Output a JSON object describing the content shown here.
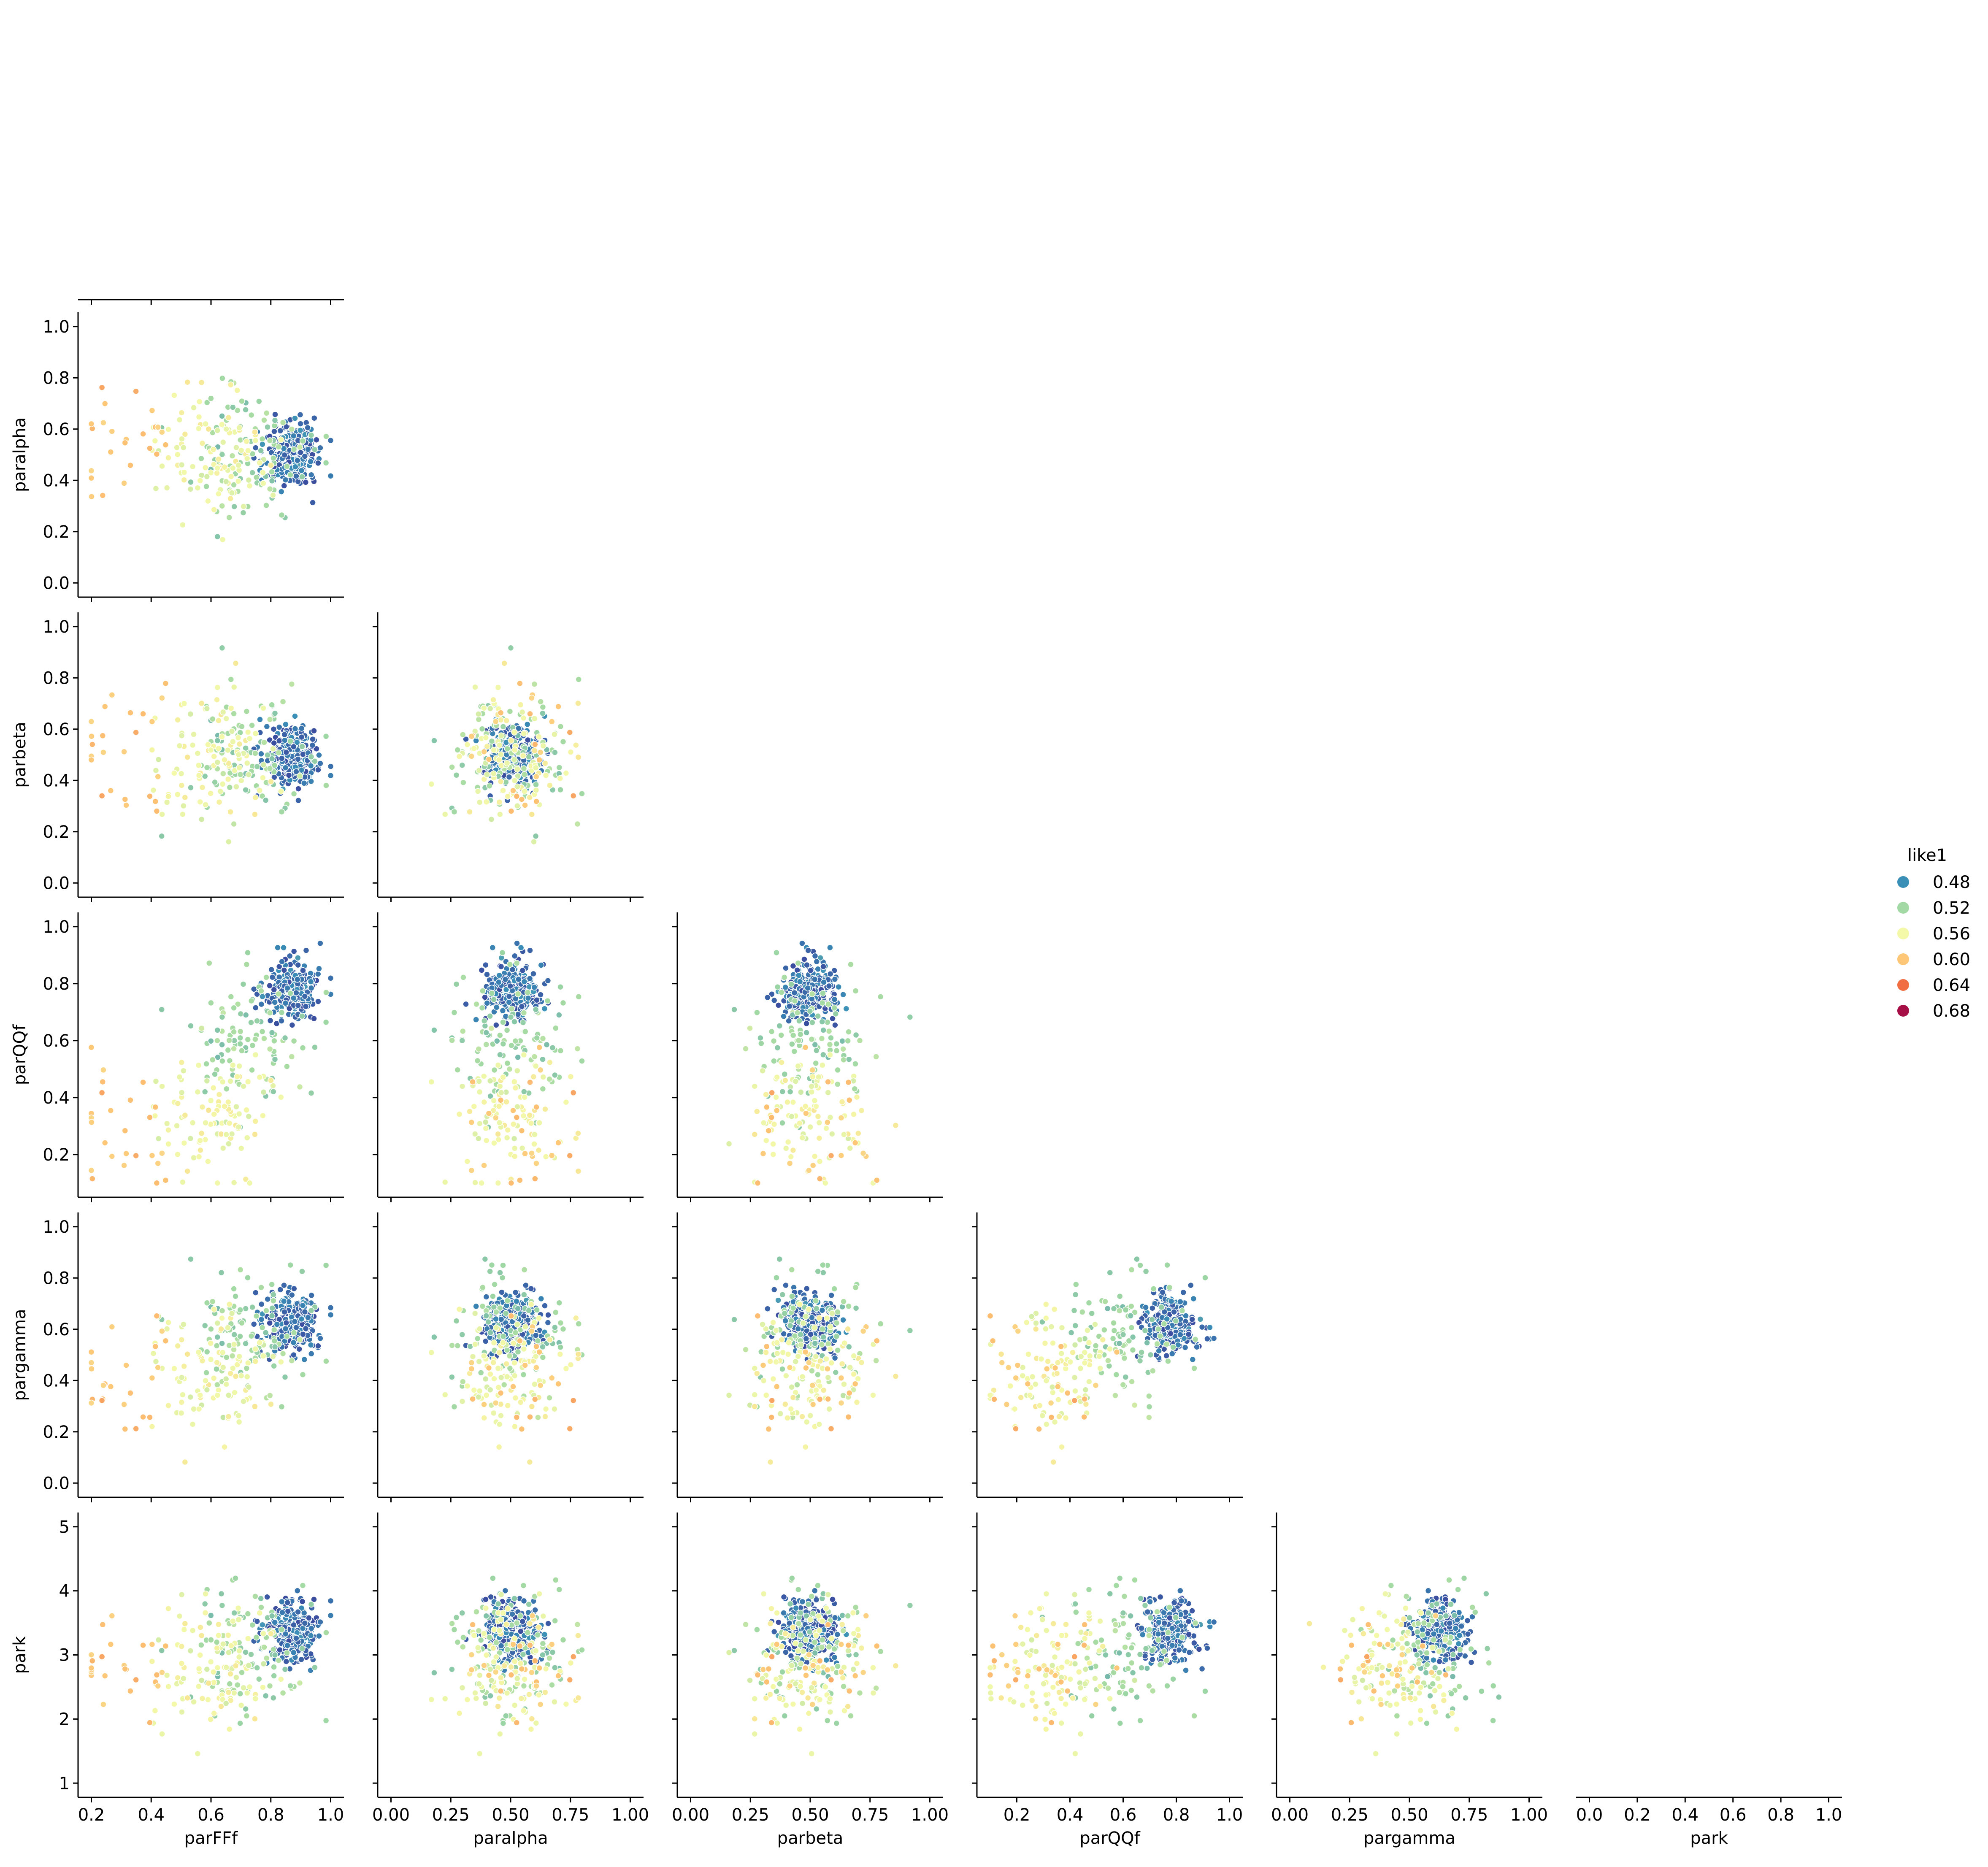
{
  "chart_data": {
    "type": "scatter",
    "layout": "pairplot-lower-triangle",
    "variables": [
      "parFFf",
      "paralpha",
      "parbeta",
      "parQQf",
      "pargamma",
      "park"
    ],
    "axis_ranges": {
      "parFFf": [
        0.2,
        1.0
      ],
      "paralpha": [
        0.0,
        1.0
      ],
      "parbeta": [
        0.0,
        1.0
      ],
      "parQQf": [
        0.1,
        1.0
      ],
      "pargamma": [
        0.0,
        1.0
      ],
      "park": [
        1.0,
        5.0
      ]
    },
    "x_ticks": {
      "parFFf": [
        "0.2",
        "0.4",
        "0.6",
        "0.8",
        "1.0"
      ],
      "paralpha": [
        "0.00",
        "0.25",
        "0.50",
        "0.75",
        "1.00"
      ],
      "parbeta": [
        "0.00",
        "0.25",
        "0.50",
        "0.75",
        "1.00"
      ],
      "parQQf": [
        "0.2",
        "0.4",
        "0.6",
        "0.8",
        "1.0"
      ],
      "pargamma": [
        "0.00",
        "0.25",
        "0.50",
        "0.75",
        "1.00"
      ],
      "park": [
        "0.0",
        "0.2",
        "0.4",
        "0.6",
        "0.8",
        "1.0"
      ]
    },
    "y_ticks": {
      "paralpha": [
        "0.0",
        "0.2",
        "0.4",
        "0.6",
        "0.8",
        "1.0"
      ],
      "parbeta": [
        "0.0",
        "0.2",
        "0.4",
        "0.6",
        "0.8",
        "1.0"
      ],
      "parQQf": [
        "0.2",
        "0.4",
        "0.6",
        "0.8",
        "1.0"
      ],
      "pargamma": [
        "0.0",
        "0.2",
        "0.4",
        "0.6",
        "0.8",
        "1.0"
      ],
      "park": [
        "1",
        "2",
        "3",
        "4",
        "5"
      ]
    },
    "legend": {
      "title": "like1",
      "placement": "right",
      "entries": [
        {
          "label": "0.48",
          "color": "#3a8fb7"
        },
        {
          "label": "0.52",
          "color": "#a2d9a4"
        },
        {
          "label": "0.56",
          "color": "#f3f9a9"
        },
        {
          "label": "0.60",
          "color": "#fdc777"
        },
        {
          "label": "0.64",
          "color": "#f16e43"
        },
        {
          "label": "0.68",
          "color": "#a50f45"
        }
      ]
    },
    "hue_range": [
      0.46,
      0.69
    ],
    "clusters": [
      {
        "parFFf": 0.87,
        "paralpha": 0.5,
        "parbeta": 0.5,
        "parQQf": 0.78,
        "pargamma": 0.62,
        "park": 3.4,
        "like1": 0.47,
        "share": 0.55
      },
      {
        "parFFf": 0.72,
        "paralpha": 0.5,
        "parbeta": 0.5,
        "parQQf": 0.62,
        "pargamma": 0.6,
        "park": 3.0,
        "like1": 0.52,
        "share": 0.2
      },
      {
        "parFFf": 0.6,
        "paralpha": 0.5,
        "parbeta": 0.5,
        "parQQf": 0.35,
        "pargamma": 0.45,
        "park": 2.8,
        "like1": 0.56,
        "share": 0.2
      },
      {
        "parFFf": 0.3,
        "paralpha": 0.5,
        "parbeta": 0.5,
        "parQQf": 0.3,
        "pargamma": 0.4,
        "park": 3.0,
        "like1": 0.6,
        "share": 0.05
      }
    ],
    "point_count": 500
  }
}
